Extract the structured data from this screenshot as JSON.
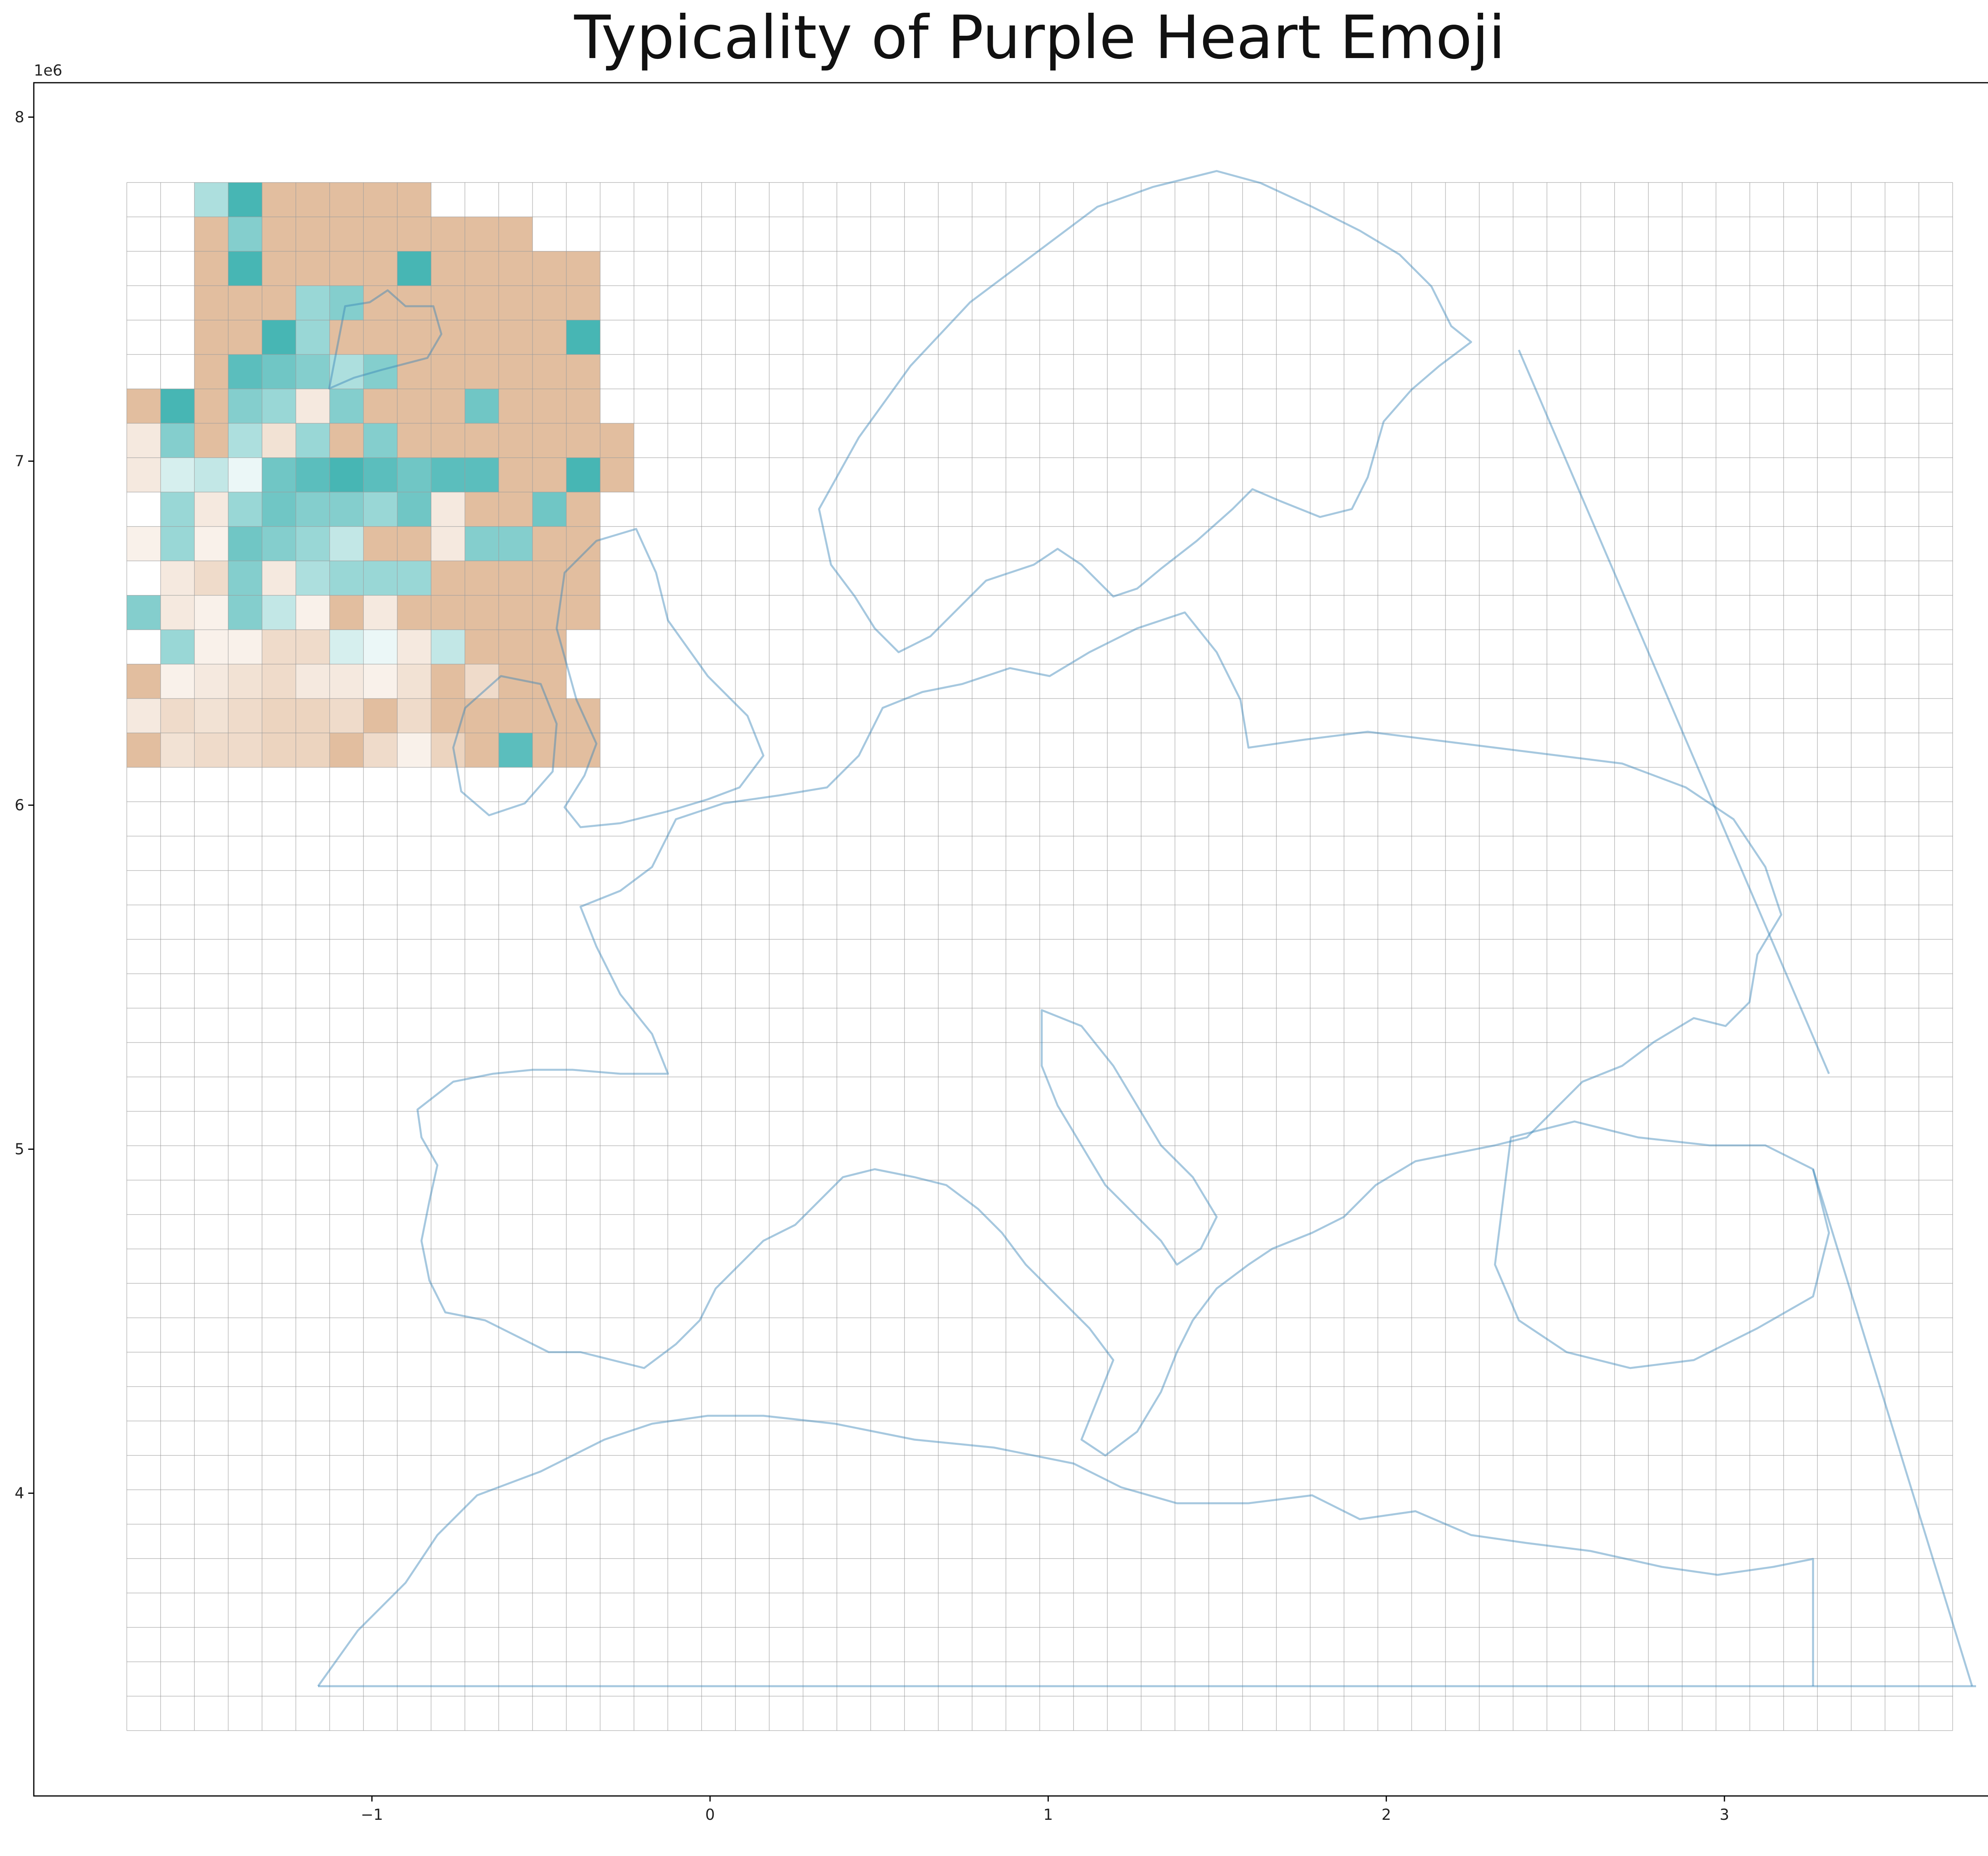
{
  "chart_data": {
    "type": "heatmap",
    "title": "Typicality of Purple Heart Emoji",
    "xlabel": "",
    "ylabel": "",
    "xlim": [
      -2000000,
      3950000
    ],
    "ylim": [
      3120000,
      8100000
    ],
    "x_ticks": [
      -1,
      0,
      1,
      2,
      3
    ],
    "x_tick_labels": [
      "−1",
      "0",
      "1",
      "2",
      "3"
    ],
    "y_ticks": [
      4,
      5,
      6,
      7,
      8
    ],
    "y_tick_labels": [
      "4",
      "5",
      "6",
      "7",
      "8"
    ],
    "x_offset_label": "1e6",
    "y_offset_label": "1e6",
    "grid_origin": [
      -1725000,
      3310000
    ],
    "cell_size": 100000,
    "grid_cols": 54,
    "grid_rows": 45,
    "grid": true,
    "colors": {
      "positive": "#32aeac",
      "negative": "#dfb794",
      "neutral": "#ffffff",
      "grid_line": "#9a9a9a",
      "outline": "#3a86b8"
    },
    "value_range": [
      -1,
      1
    ],
    "cell_value_note_skip": "",
    "cells": [
      [
        2,
        44,
        0.4
      ],
      [
        3,
        44,
        0.9
      ],
      [
        4,
        44,
        -0.9
      ],
      [
        5,
        44,
        -0.9
      ],
      [
        6,
        44,
        -0.9
      ],
      [
        7,
        44,
        -0.9
      ],
      [
        8,
        44,
        -0.9
      ],
      [
        2,
        43,
        -0.9
      ],
      [
        3,
        43,
        0.6
      ],
      [
        4,
        43,
        -0.9
      ],
      [
        5,
        43,
        -0.9
      ],
      [
        6,
        43,
        -0.9
      ],
      [
        7,
        43,
        -0.9
      ],
      [
        8,
        43,
        -0.9
      ],
      [
        9,
        43,
        -0.9
      ],
      [
        10,
        43,
        -0.9
      ],
      [
        11,
        43,
        -0.9
      ],
      [
        2,
        42,
        -0.9
      ],
      [
        3,
        42,
        0.9
      ],
      [
        4,
        42,
        -0.9
      ],
      [
        5,
        42,
        -0.9
      ],
      [
        6,
        42,
        -0.9
      ],
      [
        7,
        42,
        -0.9
      ],
      [
        8,
        42,
        0.9
      ],
      [
        9,
        42,
        -0.9
      ],
      [
        10,
        42,
        -0.9
      ],
      [
        11,
        42,
        -0.9
      ],
      [
        12,
        42,
        -0.9
      ],
      [
        13,
        42,
        -0.9
      ],
      [
        2,
        41,
        -0.9
      ],
      [
        3,
        41,
        -0.9
      ],
      [
        4,
        41,
        -0.9
      ],
      [
        5,
        41,
        0.5
      ],
      [
        6,
        41,
        0.6
      ],
      [
        7,
        41,
        -0.9
      ],
      [
        8,
        41,
        -0.9
      ],
      [
        9,
        41,
        -0.9
      ],
      [
        10,
        41,
        -0.9
      ],
      [
        11,
        41,
        -0.9
      ],
      [
        12,
        41,
        -0.9
      ],
      [
        13,
        41,
        -0.9
      ],
      [
        2,
        40,
        -0.9
      ],
      [
        3,
        40,
        -0.9
      ],
      [
        4,
        40,
        0.9
      ],
      [
        5,
        40,
        0.5
      ],
      [
        6,
        40,
        -0.9
      ],
      [
        7,
        40,
        -0.9
      ],
      [
        8,
        40,
        -0.9
      ],
      [
        9,
        40,
        -0.9
      ],
      [
        10,
        40,
        -0.9
      ],
      [
        11,
        40,
        -0.9
      ],
      [
        12,
        40,
        -0.9
      ],
      [
        13,
        40,
        0.9
      ],
      [
        2,
        39,
        -0.9
      ],
      [
        3,
        39,
        0.8
      ],
      [
        4,
        39,
        0.7
      ],
      [
        5,
        39,
        0.6
      ],
      [
        6,
        39,
        0.4
      ],
      [
        7,
        39,
        0.6
      ],
      [
        8,
        39,
        -0.9
      ],
      [
        9,
        39,
        -0.9
      ],
      [
        10,
        39,
        -0.9
      ],
      [
        11,
        39,
        -0.9
      ],
      [
        12,
        39,
        -0.9
      ],
      [
        13,
        39,
        -0.9
      ],
      [
        0,
        38,
        -0.9
      ],
      [
        1,
        38,
        0.9
      ],
      [
        2,
        38,
        -0.9
      ],
      [
        3,
        38,
        0.6
      ],
      [
        4,
        38,
        0.5
      ],
      [
        5,
        38,
        -0.3
      ],
      [
        6,
        38,
        0.6
      ],
      [
        7,
        38,
        -0.9
      ],
      [
        8,
        38,
        -0.9
      ],
      [
        9,
        38,
        -0.9
      ],
      [
        10,
        38,
        0.7
      ],
      [
        11,
        38,
        -0.9
      ],
      [
        12,
        38,
        -0.9
      ],
      [
        13,
        38,
        -0.9
      ],
      [
        0,
        37,
        -0.3
      ],
      [
        1,
        37,
        0.6
      ],
      [
        2,
        37,
        -0.9
      ],
      [
        3,
        37,
        0.4
      ],
      [
        4,
        37,
        -0.4
      ],
      [
        5,
        37,
        0.5
      ],
      [
        6,
        37,
        -0.9
      ],
      [
        7,
        37,
        0.6
      ],
      [
        8,
        37,
        -0.9
      ],
      [
        9,
        37,
        -0.9
      ],
      [
        10,
        37,
        -0.9
      ],
      [
        11,
        37,
        -0.9
      ],
      [
        12,
        37,
        -0.9
      ],
      [
        13,
        37,
        -0.9
      ],
      [
        14,
        37,
        -0.9
      ],
      [
        0,
        36,
        -0.3
      ],
      [
        1,
        36,
        0.2
      ],
      [
        2,
        36,
        0.3
      ],
      [
        3,
        36,
        0.1
      ],
      [
        4,
        36,
        0.7
      ],
      [
        5,
        36,
        0.8
      ],
      [
        6,
        36,
        0.9
      ],
      [
        7,
        36,
        0.8
      ],
      [
        8,
        36,
        0.7
      ],
      [
        9,
        36,
        0.8
      ],
      [
        10,
        36,
        0.8
      ],
      [
        11,
        36,
        -0.9
      ],
      [
        12,
        36,
        -0.9
      ],
      [
        13,
        36,
        0.9
      ],
      [
        14,
        36,
        -0.9
      ],
      [
        1,
        35,
        0.5
      ],
      [
        2,
        35,
        -0.3
      ],
      [
        3,
        35,
        0.5
      ],
      [
        4,
        35,
        0.7
      ],
      [
        5,
        35,
        0.6
      ],
      [
        6,
        35,
        0.6
      ],
      [
        7,
        35,
        0.5
      ],
      [
        8,
        35,
        0.7
      ],
      [
        9,
        35,
        -0.3
      ],
      [
        10,
        35,
        -0.9
      ],
      [
        11,
        35,
        -0.9
      ],
      [
        12,
        35,
        0.7
      ],
      [
        13,
        35,
        -0.9
      ],
      [
        0,
        34,
        -0.2
      ],
      [
        1,
        34,
        0.5
      ],
      [
        2,
        34,
        -0.2
      ],
      [
        3,
        34,
        0.7
      ],
      [
        4,
        34,
        0.6
      ],
      [
        5,
        34,
        0.5
      ],
      [
        6,
        34,
        0.3
      ],
      [
        7,
        34,
        -0.9
      ],
      [
        8,
        34,
        -0.9
      ],
      [
        9,
        34,
        -0.3
      ],
      [
        10,
        34,
        0.6
      ],
      [
        11,
        34,
        0.6
      ],
      [
        12,
        34,
        -0.9
      ],
      [
        13,
        34,
        -0.9
      ],
      [
        1,
        33,
        -0.3
      ],
      [
        2,
        33,
        -0.5
      ],
      [
        3,
        33,
        0.6
      ],
      [
        4,
        33,
        -0.3
      ],
      [
        5,
        33,
        0.4
      ],
      [
        6,
        33,
        0.5
      ],
      [
        7,
        33,
        0.5
      ],
      [
        8,
        33,
        0.5
      ],
      [
        9,
        33,
        -0.9
      ],
      [
        10,
        33,
        -0.9
      ],
      [
        11,
        33,
        -0.9
      ],
      [
        12,
        33,
        -0.9
      ],
      [
        13,
        33,
        -0.9
      ],
      [
        0,
        32,
        0.6
      ],
      [
        1,
        32,
        -0.3
      ],
      [
        2,
        32,
        -0.2
      ],
      [
        3,
        32,
        0.6
      ],
      [
        4,
        32,
        0.3
      ],
      [
        5,
        32,
        -0.2
      ],
      [
        6,
        32,
        -0.9
      ],
      [
        7,
        32,
        -0.3
      ],
      [
        8,
        32,
        -0.9
      ],
      [
        9,
        32,
        -0.9
      ],
      [
        10,
        32,
        -0.9
      ],
      [
        11,
        32,
        -0.9
      ],
      [
        12,
        32,
        -0.9
      ],
      [
        13,
        32,
        -0.9
      ],
      [
        1,
        31,
        0.5
      ],
      [
        2,
        31,
        -0.2
      ],
      [
        3,
        31,
        -0.2
      ],
      [
        4,
        31,
        -0.5
      ],
      [
        5,
        31,
        -0.5
      ],
      [
        6,
        31,
        0.2
      ],
      [
        7,
        31,
        0.1
      ],
      [
        8,
        31,
        -0.3
      ],
      [
        9,
        31,
        0.3
      ],
      [
        10,
        31,
        -0.9
      ],
      [
        11,
        31,
        -0.9
      ],
      [
        12,
        31,
        -0.9
      ],
      [
        0,
        30,
        -0.9
      ],
      [
        1,
        30,
        -0.2
      ],
      [
        2,
        30,
        -0.3
      ],
      [
        3,
        30,
        -0.4
      ],
      [
        4,
        30,
        -0.5
      ],
      [
        5,
        30,
        -0.3
      ],
      [
        6,
        30,
        -0.3
      ],
      [
        7,
        30,
        -0.2
      ],
      [
        8,
        30,
        -0.4
      ],
      [
        9,
        30,
        -0.9
      ],
      [
        10,
        30,
        -0.5
      ],
      [
        11,
        30,
        -0.9
      ],
      [
        12,
        30,
        -0.9
      ],
      [
        0,
        29,
        -0.3
      ],
      [
        1,
        29,
        -0.5
      ],
      [
        2,
        29,
        -0.4
      ],
      [
        3,
        29,
        -0.5
      ],
      [
        4,
        29,
        -0.6
      ],
      [
        5,
        29,
        -0.6
      ],
      [
        6,
        29,
        -0.5
      ],
      [
        7,
        29,
        -0.9
      ],
      [
        8,
        29,
        -0.5
      ],
      [
        9,
        29,
        -0.9
      ],
      [
        10,
        29,
        -0.9
      ],
      [
        11,
        29,
        -0.9
      ],
      [
        12,
        29,
        -0.9
      ],
      [
        13,
        29,
        -0.9
      ],
      [
        0,
        28,
        -0.9
      ],
      [
        1,
        28,
        -0.4
      ],
      [
        2,
        28,
        -0.5
      ],
      [
        3,
        28,
        -0.5
      ],
      [
        4,
        28,
        -0.6
      ],
      [
        5,
        28,
        -0.6
      ],
      [
        6,
        28,
        -0.9
      ],
      [
        7,
        28,
        -0.5
      ],
      [
        8,
        28,
        -0.2
      ],
      [
        9,
        28,
        -0.6
      ],
      [
        10,
        28,
        -0.9
      ],
      [
        11,
        28,
        0.8
      ],
      [
        12,
        28,
        -0.9
      ],
      [
        13,
        28,
        -0.9
      ]
    ]
  }
}
